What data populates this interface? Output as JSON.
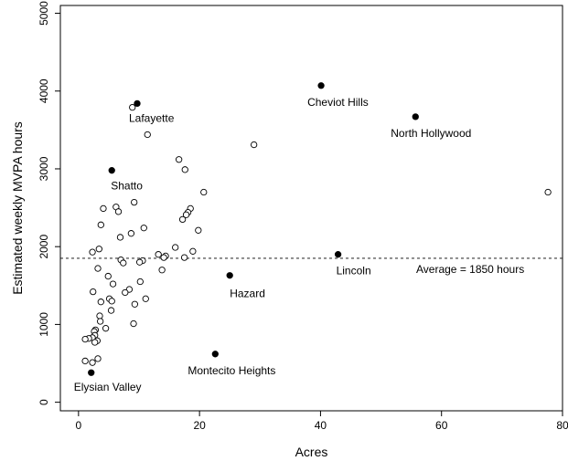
{
  "chart_data": {
    "type": "scatter",
    "xlabel": "Acres",
    "ylabel": "Estimated weekly MVPA hours",
    "xlim": [
      -3,
      80
    ],
    "ylim": [
      -110,
      5100
    ],
    "xticks": [
      0,
      20,
      40,
      60,
      80
    ],
    "yticks": [
      0,
      1000,
      2000,
      3000,
      4000,
      5000
    ],
    "grid": false,
    "legend": "none",
    "reference_line": {
      "y": 1850,
      "label": "Average = 1850 hours"
    },
    "highlighted_points": [
      {
        "label": "Lafayette",
        "x": 9.7,
        "y": 3840
      },
      {
        "label": "Cheviot Hills",
        "x": 40.1,
        "y": 4070
      },
      {
        "label": "North Hollywood",
        "x": 55.7,
        "y": 3670
      },
      {
        "label": "Shatto",
        "x": 5.5,
        "y": 2980
      },
      {
        "label": "Lincoln",
        "x": 42.9,
        "y": 1900
      },
      {
        "label": "Hazard",
        "x": 25.0,
        "y": 1630
      },
      {
        "label": "Montecito Heights",
        "x": 22.6,
        "y": 620
      },
      {
        "label": "Elysian Valley",
        "x": 2.1,
        "y": 380
      }
    ],
    "other_points": [
      {
        "x": 8.9,
        "y": 3790
      },
      {
        "x": 11.4,
        "y": 3440
      },
      {
        "x": 29.0,
        "y": 3310
      },
      {
        "x": 16.6,
        "y": 3120
      },
      {
        "x": 17.6,
        "y": 2990
      },
      {
        "x": 77.6,
        "y": 2700
      },
      {
        "x": 20.7,
        "y": 2700
      },
      {
        "x": 9.2,
        "y": 2570
      },
      {
        "x": 6.2,
        "y": 2510
      },
      {
        "x": 4.1,
        "y": 2490
      },
      {
        "x": 18.5,
        "y": 2490
      },
      {
        "x": 6.6,
        "y": 2450
      },
      {
        "x": 18.1,
        "y": 2440
      },
      {
        "x": 17.8,
        "y": 2410
      },
      {
        "x": 17.2,
        "y": 2350
      },
      {
        "x": 3.7,
        "y": 2280
      },
      {
        "x": 10.8,
        "y": 2240
      },
      {
        "x": 19.8,
        "y": 2210
      },
      {
        "x": 8.7,
        "y": 2170
      },
      {
        "x": 6.9,
        "y": 2120
      },
      {
        "x": 16.0,
        "y": 1990
      },
      {
        "x": 3.4,
        "y": 1970
      },
      {
        "x": 18.9,
        "y": 1940
      },
      {
        "x": 2.3,
        "y": 1930
      },
      {
        "x": 13.2,
        "y": 1900
      },
      {
        "x": 14.4,
        "y": 1880
      },
      {
        "x": 14.1,
        "y": 1860
      },
      {
        "x": 17.5,
        "y": 1860
      },
      {
        "x": 7.0,
        "y": 1830
      },
      {
        "x": 10.6,
        "y": 1820
      },
      {
        "x": 10.1,
        "y": 1800
      },
      {
        "x": 7.4,
        "y": 1790
      },
      {
        "x": 3.2,
        "y": 1720
      },
      {
        "x": 13.8,
        "y": 1700
      },
      {
        "x": 4.9,
        "y": 1620
      },
      {
        "x": 10.2,
        "y": 1550
      },
      {
        "x": 5.7,
        "y": 1520
      },
      {
        "x": 8.4,
        "y": 1450
      },
      {
        "x": 2.4,
        "y": 1420
      },
      {
        "x": 7.7,
        "y": 1410
      },
      {
        "x": 5.1,
        "y": 1330
      },
      {
        "x": 11.1,
        "y": 1330
      },
      {
        "x": 5.5,
        "y": 1300
      },
      {
        "x": 3.7,
        "y": 1290
      },
      {
        "x": 9.3,
        "y": 1260
      },
      {
        "x": 5.4,
        "y": 1180
      },
      {
        "x": 3.5,
        "y": 1110
      },
      {
        "x": 3.6,
        "y": 1040
      },
      {
        "x": 9.1,
        "y": 1010
      },
      {
        "x": 4.5,
        "y": 950
      },
      {
        "x": 2.8,
        "y": 930
      },
      {
        "x": 2.6,
        "y": 910
      },
      {
        "x": 2.7,
        "y": 860
      },
      {
        "x": 2.3,
        "y": 830
      },
      {
        "x": 1.7,
        "y": 820
      },
      {
        "x": 1.1,
        "y": 810
      },
      {
        "x": 3.1,
        "y": 790
      },
      {
        "x": 2.7,
        "y": 770
      },
      {
        "x": 3.2,
        "y": 560
      },
      {
        "x": 1.1,
        "y": 530
      },
      {
        "x": 2.3,
        "y": 510
      }
    ]
  }
}
